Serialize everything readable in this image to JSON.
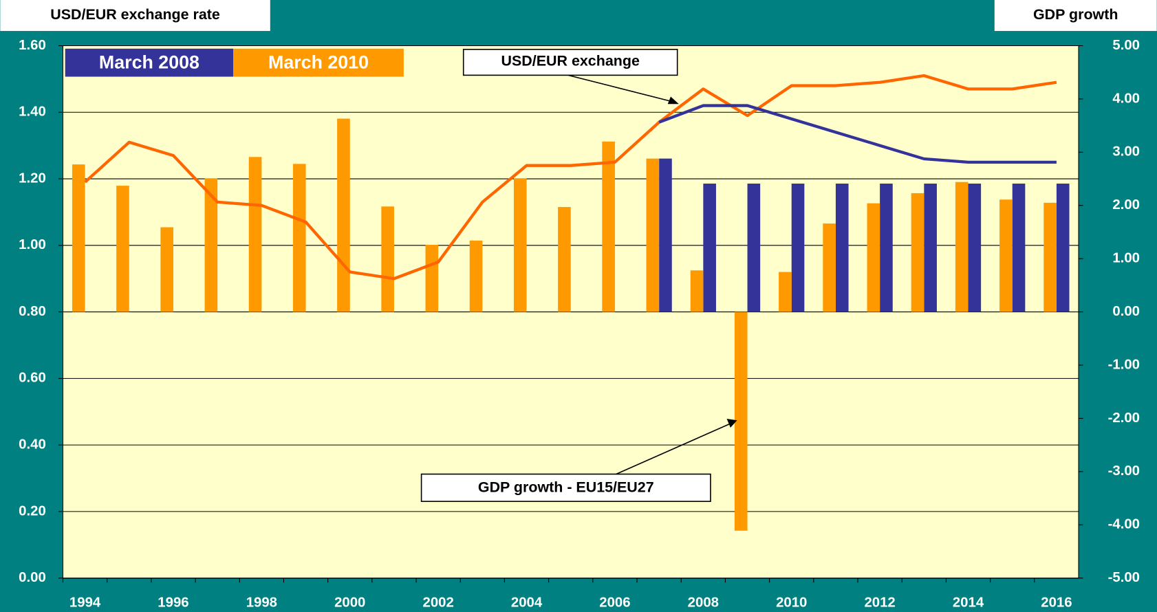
{
  "chart_data": {
    "type": "bar-line",
    "y_title": "USD/EUR exchange rate",
    "y2_title": "GDP growth",
    "annotations": [
      "USD/EUR exchange",
      "GDP growth - EU15/EU27"
    ],
    "categories": [
      "1994",
      null,
      "1996",
      null,
      "1998",
      null,
      "2000",
      null,
      "2002",
      null,
      "2004",
      null,
      "2006",
      null,
      "2008",
      null,
      "2010",
      null,
      "2012",
      null,
      "2014",
      null,
      "2016"
    ],
    "series": [
      {
        "name": "March 2008",
        "color": "#333399",
        "axis": "y2",
        "values": [
          null,
          null,
          null,
          null,
          null,
          null,
          null,
          null,
          null,
          null,
          null,
          null,
          null,
          2.88,
          2.41,
          2.41,
          2.41,
          2.41,
          2.41,
          2.41,
          2.41,
          2.41,
          2.41
        ],
        "exchange": [
          null,
          null,
          null,
          null,
          null,
          null,
          null,
          null,
          null,
          null,
          null,
          null,
          null,
          1.37,
          1.42,
          1.42,
          1.38,
          1.34,
          1.3,
          1.26,
          1.25,
          1.25,
          1.25
        ],
        "line_color": "#333399"
      },
      {
        "name": "March 2010",
        "color": "#FF9900",
        "axis": "y2",
        "values": [
          2.77,
          2.37,
          1.59,
          2.51,
          2.91,
          2.78,
          3.63,
          1.98,
          1.26,
          1.34,
          2.51,
          1.97,
          3.2,
          2.88,
          0.78,
          -4.11,
          0.75,
          1.66,
          2.04,
          2.23,
          2.44,
          2.11,
          2.05
        ],
        "exchange": [
          1.19,
          1.31,
          1.27,
          1.13,
          1.12,
          1.07,
          0.92,
          0.9,
          0.95,
          1.13,
          1.24,
          1.24,
          1.25,
          1.37,
          1.47,
          1.39,
          1.48,
          1.48,
          1.49,
          1.51,
          1.47,
          1.47,
          1.49
        ],
        "line_color": "#FF6600"
      }
    ],
    "ylim": [
      0,
      1.6
    ],
    "yticks": [
      {
        "value": 0,
        "label": "0.00"
      },
      {
        "value": 0.2,
        "label": "0.20"
      },
      {
        "value": 0.4,
        "label": "0.40"
      },
      {
        "value": 0.6,
        "label": "0.60"
      },
      {
        "value": 0.8,
        "label": "0.80"
      },
      {
        "value": 1.0,
        "label": "1.00"
      },
      {
        "value": 1.2,
        "label": "1.20"
      },
      {
        "value": 1.4,
        "label": "1.40"
      },
      {
        "value": 1.6,
        "label": "1.60"
      }
    ],
    "y2lim": [
      -5,
      5
    ],
    "y2ticks": [
      {
        "value": -5,
        "label": "-5.00"
      },
      {
        "value": -4,
        "label": "-4.00"
      },
      {
        "value": -3,
        "label": "-3.00"
      },
      {
        "value": -2,
        "label": "-2.00"
      },
      {
        "value": -1,
        "label": "-1.00"
      },
      {
        "value": 0,
        "label": "0.00"
      },
      {
        "value": 1,
        "label": "1.00"
      },
      {
        "value": 2,
        "label": "2.00"
      },
      {
        "value": 3,
        "label": "3.00"
      },
      {
        "value": 4,
        "label": "4.00"
      },
      {
        "value": 5,
        "label": "5.00"
      }
    ],
    "grid": true,
    "background": "#FFFFCC"
  }
}
